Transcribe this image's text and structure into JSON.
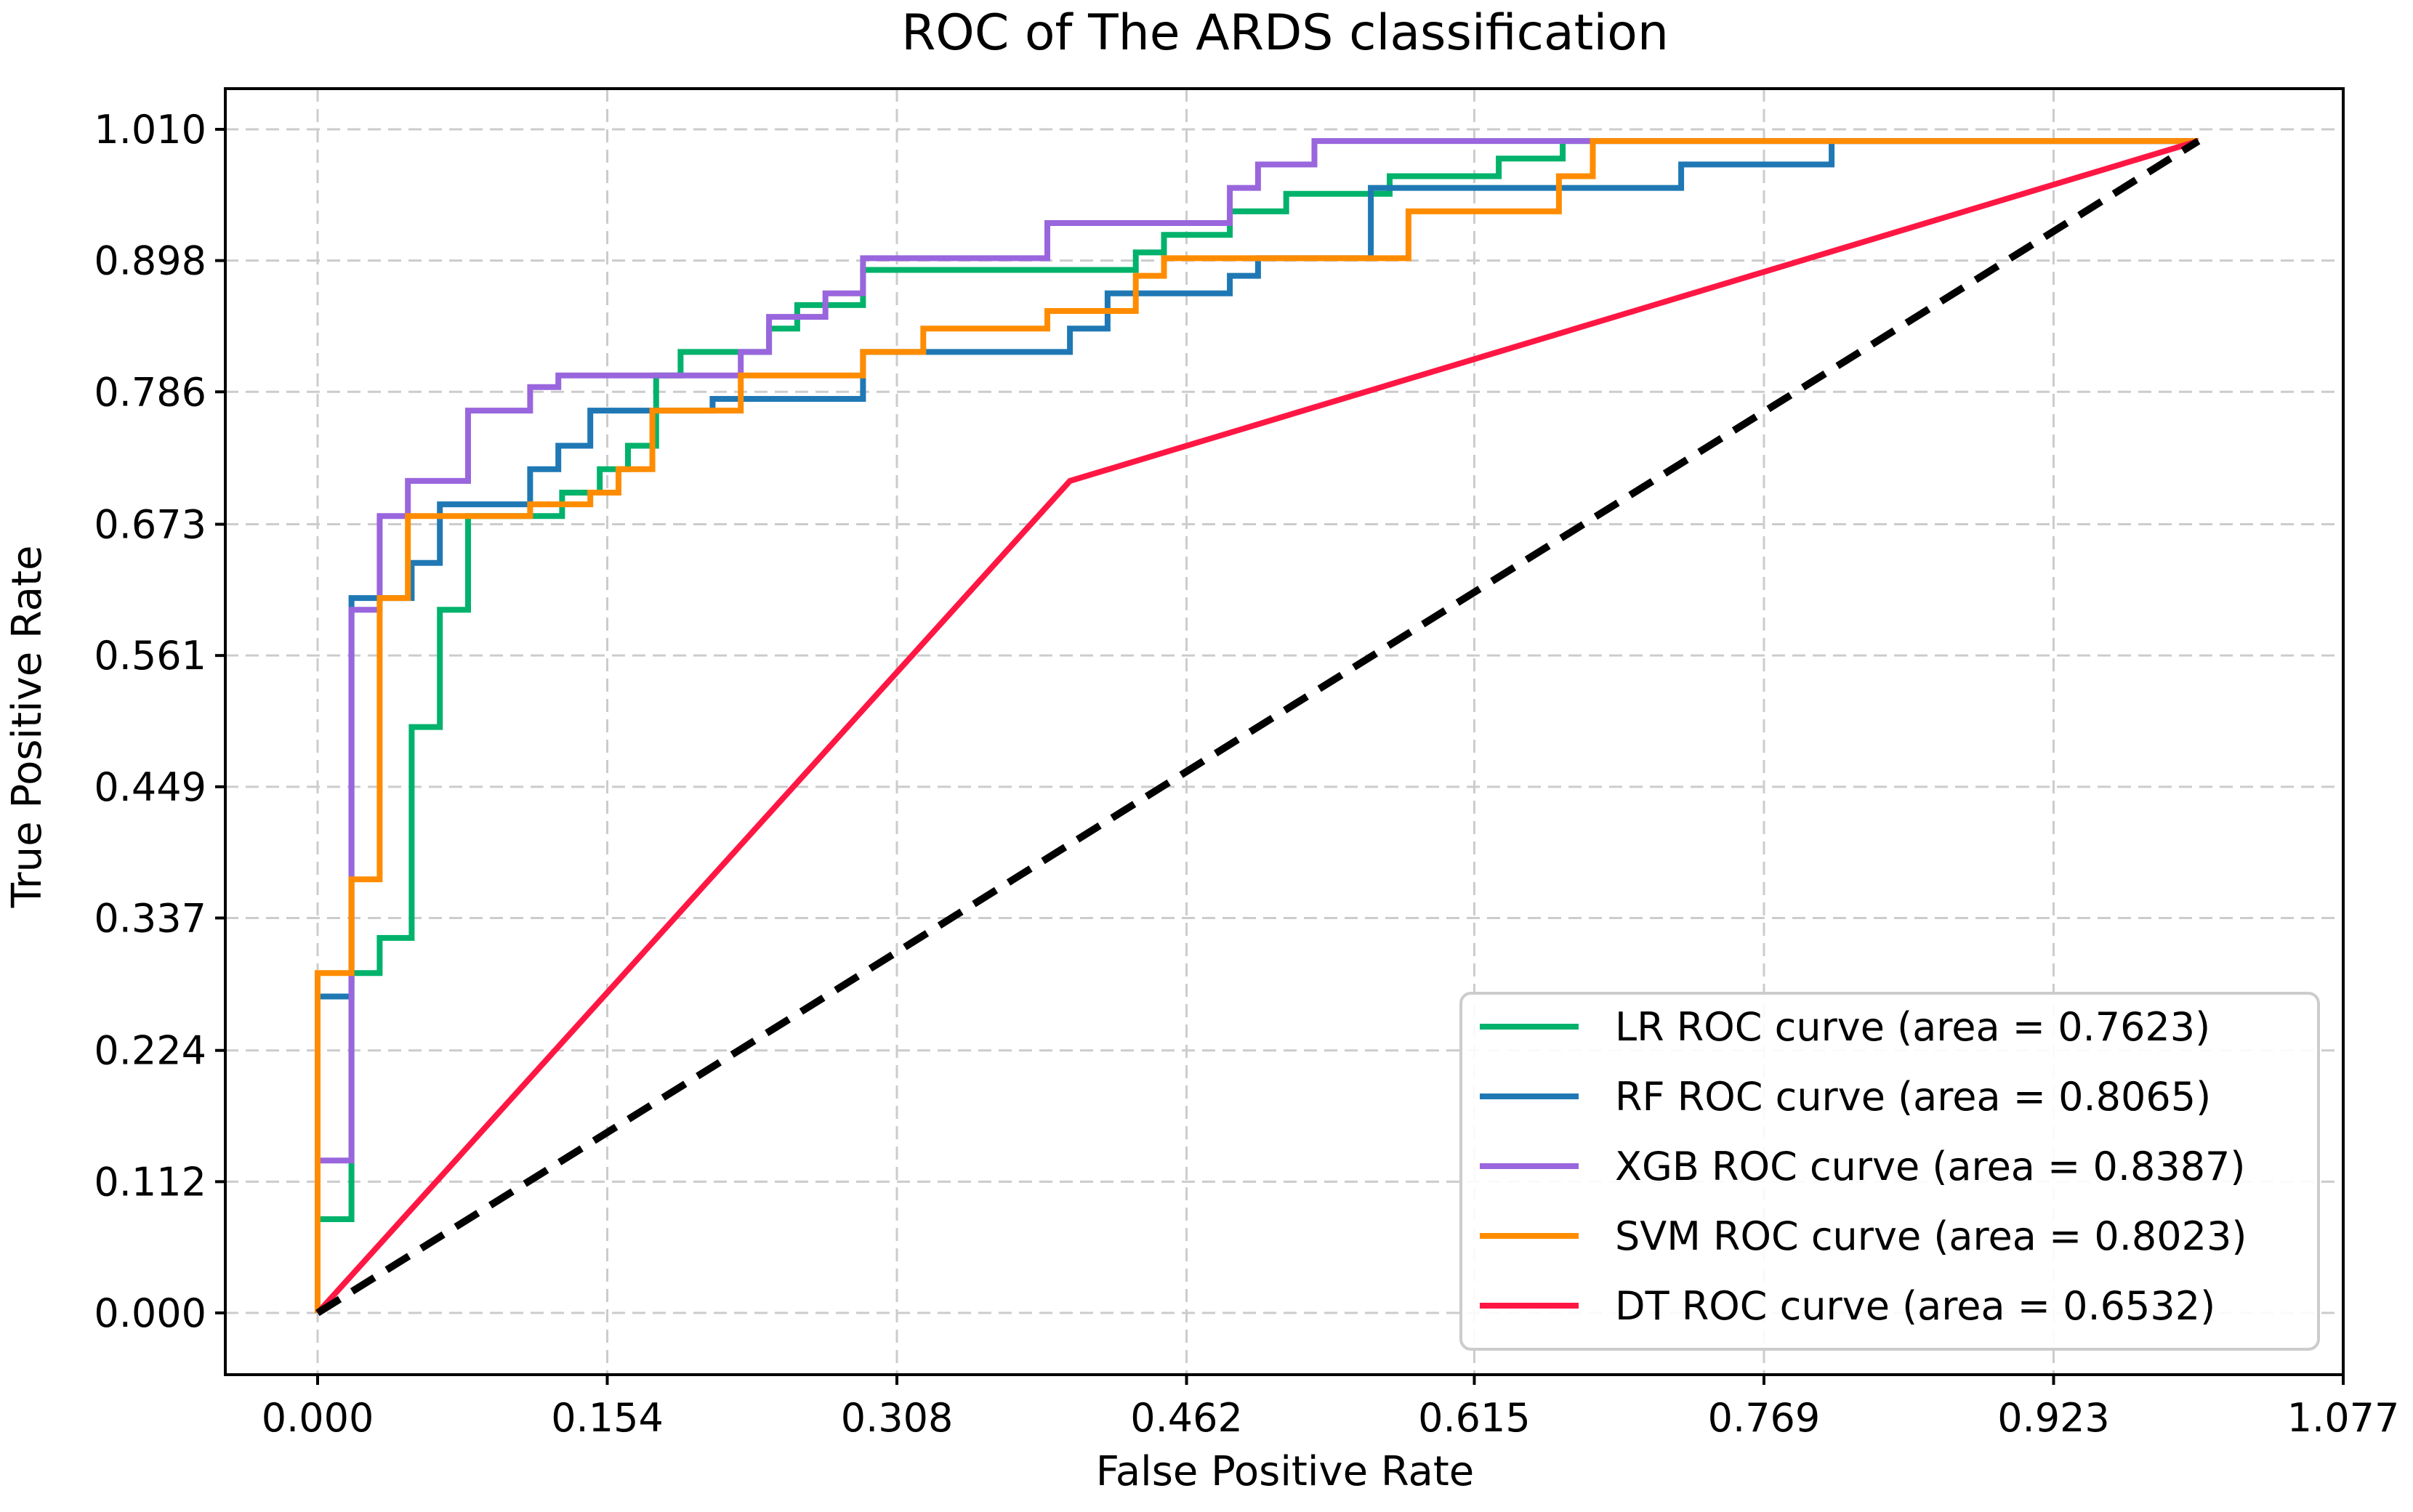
{
  "chart_data": {
    "type": "line",
    "title": "ROC of The ARDS classification",
    "xlabel": "False Positive Rate",
    "ylabel": "True Positive Rate",
    "xlim": [
      -0.05,
      1.077
    ],
    "ylim": [
      -0.05,
      1.01
    ],
    "xticks": [
      0.0,
      0.154,
      0.308,
      0.462,
      0.615,
      0.769,
      0.923,
      1.077
    ],
    "xtick_labels": [
      "0.000",
      "0.154",
      "0.308",
      "0.462",
      "0.615",
      "0.769",
      "0.923",
      "1.077"
    ],
    "yticks": [
      0.0,
      0.112,
      0.224,
      0.337,
      0.449,
      0.561,
      0.673,
      0.786,
      0.898,
      1.01
    ],
    "ytick_labels": [
      "0.000",
      "0.112",
      "0.224",
      "0.337",
      "0.449",
      "0.561",
      "0.673",
      "0.786",
      "0.898",
      "1.010"
    ],
    "grid": true,
    "legend_position": "lower-right",
    "series": [
      {
        "name": "LR ROC curve (area = 0.7623)",
        "color": "#00B26B",
        "points": [
          [
            0,
            0
          ],
          [
            0,
            0.08
          ],
          [
            0.018,
            0.08
          ],
          [
            0.018,
            0.29
          ],
          [
            0.033,
            0.29
          ],
          [
            0.033,
            0.32
          ],
          [
            0.05,
            0.32
          ],
          [
            0.05,
            0.5
          ],
          [
            0.065,
            0.5
          ],
          [
            0.065,
            0.6
          ],
          [
            0.08,
            0.6
          ],
          [
            0.08,
            0.68
          ],
          [
            0.13,
            0.68
          ],
          [
            0.13,
            0.7
          ],
          [
            0.15,
            0.7
          ],
          [
            0.15,
            0.72
          ],
          [
            0.165,
            0.72
          ],
          [
            0.165,
            0.74
          ],
          [
            0.18,
            0.74
          ],
          [
            0.18,
            0.8
          ],
          [
            0.193,
            0.8
          ],
          [
            0.193,
            0.82
          ],
          [
            0.24,
            0.82
          ],
          [
            0.24,
            0.84
          ],
          [
            0.255,
            0.84
          ],
          [
            0.255,
            0.86
          ],
          [
            0.29,
            0.86
          ],
          [
            0.29,
            0.89
          ],
          [
            0.435,
            0.89
          ],
          [
            0.435,
            0.905
          ],
          [
            0.45,
            0.905
          ],
          [
            0.45,
            0.92
          ],
          [
            0.485,
            0.92
          ],
          [
            0.485,
            0.94
          ],
          [
            0.515,
            0.94
          ],
          [
            0.515,
            0.955
          ],
          [
            0.57,
            0.955
          ],
          [
            0.57,
            0.97
          ],
          [
            0.628,
            0.97
          ],
          [
            0.628,
            0.985
          ],
          [
            0.662,
            0.985
          ],
          [
            0.662,
            1.0
          ],
          [
            1.0,
            1.0
          ]
        ]
      },
      {
        "name": "RF ROC curve (area = 0.8065)",
        "color": "#1F78B4",
        "points": [
          [
            0,
            0
          ],
          [
            0,
            0.27
          ],
          [
            0.018,
            0.27
          ],
          [
            0.018,
            0.61
          ],
          [
            0.05,
            0.61
          ],
          [
            0.05,
            0.64
          ],
          [
            0.065,
            0.64
          ],
          [
            0.065,
            0.69
          ],
          [
            0.113,
            0.69
          ],
          [
            0.113,
            0.72
          ],
          [
            0.128,
            0.72
          ],
          [
            0.128,
            0.74
          ],
          [
            0.145,
            0.74
          ],
          [
            0.145,
            0.77
          ],
          [
            0.18,
            0.77
          ],
          [
            0.18,
            0.77
          ],
          [
            0.21,
            0.77
          ],
          [
            0.21,
            0.78
          ],
          [
            0.29,
            0.78
          ],
          [
            0.29,
            0.82
          ],
          [
            0.4,
            0.82
          ],
          [
            0.4,
            0.84
          ],
          [
            0.42,
            0.84
          ],
          [
            0.42,
            0.87
          ],
          [
            0.485,
            0.87
          ],
          [
            0.485,
            0.885
          ],
          [
            0.5,
            0.885
          ],
          [
            0.5,
            0.9
          ],
          [
            0.56,
            0.9
          ],
          [
            0.56,
            0.96
          ],
          [
            0.725,
            0.96
          ],
          [
            0.725,
            0.98
          ],
          [
            0.805,
            0.98
          ],
          [
            0.805,
            1.0
          ],
          [
            1.0,
            1.0
          ]
        ]
      },
      {
        "name": "XGB ROC curve (area = 0.8387)",
        "color": "#9966DD",
        "points": [
          [
            0,
            0
          ],
          [
            0,
            0.13
          ],
          [
            0.018,
            0.13
          ],
          [
            0.018,
            0.6
          ],
          [
            0.033,
            0.6
          ],
          [
            0.033,
            0.68
          ],
          [
            0.048,
            0.68
          ],
          [
            0.048,
            0.71
          ],
          [
            0.08,
            0.71
          ],
          [
            0.08,
            0.77
          ],
          [
            0.113,
            0.77
          ],
          [
            0.113,
            0.79
          ],
          [
            0.128,
            0.79
          ],
          [
            0.128,
            0.8
          ],
          [
            0.225,
            0.8
          ],
          [
            0.225,
            0.82
          ],
          [
            0.24,
            0.82
          ],
          [
            0.24,
            0.85
          ],
          [
            0.27,
            0.85
          ],
          [
            0.27,
            0.87
          ],
          [
            0.29,
            0.87
          ],
          [
            0.29,
            0.9
          ],
          [
            0.388,
            0.9
          ],
          [
            0.388,
            0.93
          ],
          [
            0.485,
            0.93
          ],
          [
            0.485,
            0.96
          ],
          [
            0.5,
            0.96
          ],
          [
            0.5,
            0.98
          ],
          [
            0.53,
            0.98
          ],
          [
            0.53,
            1.0
          ],
          [
            1.0,
            1.0
          ]
        ]
      },
      {
        "name": "SVM ROC curve (area = 0.8023)",
        "color": "#FF8C00",
        "points": [
          [
            0,
            0
          ],
          [
            0,
            0.29
          ],
          [
            0.018,
            0.29
          ],
          [
            0.018,
            0.37
          ],
          [
            0.033,
            0.37
          ],
          [
            0.033,
            0.61
          ],
          [
            0.048,
            0.61
          ],
          [
            0.048,
            0.68
          ],
          [
            0.113,
            0.68
          ],
          [
            0.113,
            0.69
          ],
          [
            0.145,
            0.69
          ],
          [
            0.145,
            0.7
          ],
          [
            0.16,
            0.7
          ],
          [
            0.16,
            0.72
          ],
          [
            0.178,
            0.72
          ],
          [
            0.178,
            0.77
          ],
          [
            0.225,
            0.77
          ],
          [
            0.225,
            0.8
          ],
          [
            0.29,
            0.8
          ],
          [
            0.29,
            0.82
          ],
          [
            0.322,
            0.82
          ],
          [
            0.322,
            0.84
          ],
          [
            0.388,
            0.84
          ],
          [
            0.388,
            0.855
          ],
          [
            0.435,
            0.855
          ],
          [
            0.435,
            0.885
          ],
          [
            0.45,
            0.885
          ],
          [
            0.45,
            0.9
          ],
          [
            0.58,
            0.9
          ],
          [
            0.58,
            0.94
          ],
          [
            0.66,
            0.94
          ],
          [
            0.66,
            0.97
          ],
          [
            0.678,
            0.97
          ],
          [
            0.678,
            1.0
          ],
          [
            1.0,
            1.0
          ]
        ]
      },
      {
        "name": "DT ROC curve (area = 0.6532)",
        "color": "#FF1744",
        "points": [
          [
            0,
            0
          ],
          [
            0.4,
            0.71
          ],
          [
            1.0,
            1.0
          ]
        ]
      }
    ],
    "reference_line": {
      "color": "#000000",
      "points": [
        [
          0,
          0
        ],
        [
          1.0,
          1.0
        ]
      ]
    }
  }
}
